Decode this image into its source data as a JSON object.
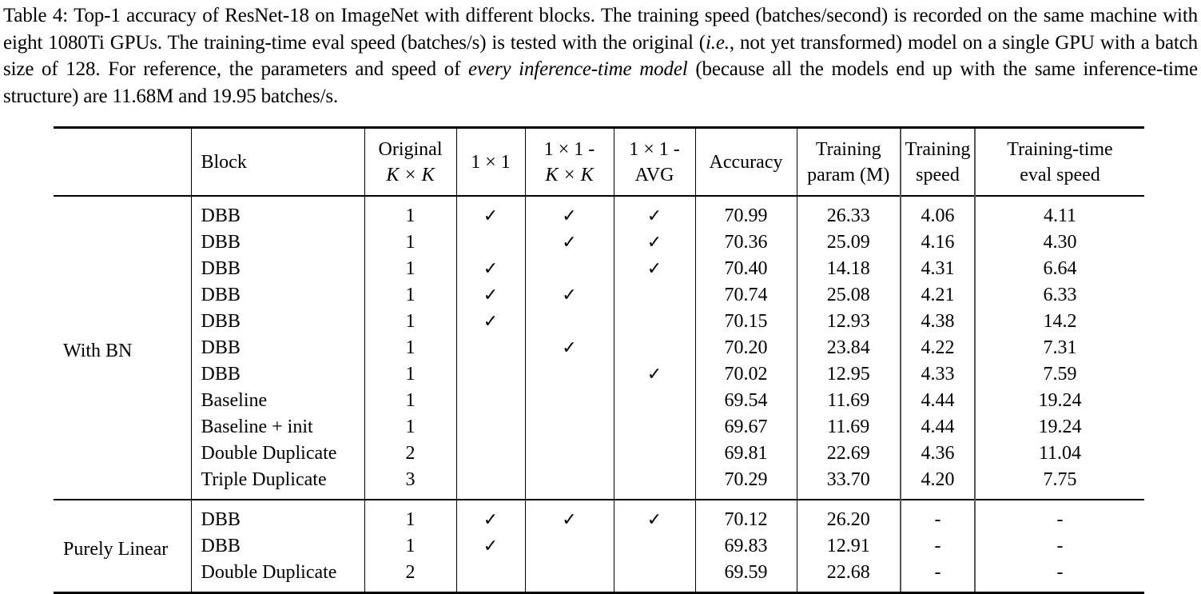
{
  "caption": {
    "label": "Table 4:",
    "part1": " Top-1 accuracy of ResNet-18 on ImageNet with different blocks. The training speed (batches/second) is recorded on the same machine with eight 1080Ti GPUs. The training-time eval speed (batches/s) is tested with the original (",
    "ie": "i.e.",
    "part2": ", not yet transformed) model on a single GPU with a batch size of 128. For reference, the parameters and speed of ",
    "italic": "every inference-time model",
    "part3": " (because all the models end up with the same inference-time structure) are 11.68M and 19.95 batches/s."
  },
  "table": {
    "headers": {
      "group": "",
      "block": "Block",
      "original_l1": "Original",
      "original_l2": "K × K",
      "one_by_one": "1 × 1",
      "one_kk_l1": "1 × 1 -",
      "one_kk_l2": "K × K",
      "one_avg_l1": "1 × 1 -",
      "one_avg_l2": "AVG",
      "accuracy": "Accuracy",
      "param_l1": "Training",
      "param_l2": "param (M)",
      "speed_l1": "Training",
      "speed_l2": "speed",
      "eval_l1": "Training-time",
      "eval_l2": "eval speed"
    },
    "check_symbol": "✓",
    "groups": [
      {
        "name": "With BN",
        "rows": [
          {
            "block": "DBB",
            "orig": "1",
            "c1": "✓",
            "c2": "✓",
            "c3": "✓",
            "acc": "70.99",
            "param": "26.33",
            "speed": "4.06",
            "eval": "4.11"
          },
          {
            "block": "DBB",
            "orig": "1",
            "c1": "",
            "c2": "✓",
            "c3": "✓",
            "acc": "70.36",
            "param": "25.09",
            "speed": "4.16",
            "eval": "4.30"
          },
          {
            "block": "DBB",
            "orig": "1",
            "c1": "✓",
            "c2": "",
            "c3": "✓",
            "acc": "70.40",
            "param": "14.18",
            "speed": "4.31",
            "eval": "6.64"
          },
          {
            "block": "DBB",
            "orig": "1",
            "c1": "✓",
            "c2": "✓",
            "c3": "",
            "acc": "70.74",
            "param": "25.08",
            "speed": "4.21",
            "eval": "6.33"
          },
          {
            "block": "DBB",
            "orig": "1",
            "c1": "✓",
            "c2": "",
            "c3": "",
            "acc": "70.15",
            "param": "12.93",
            "speed": "4.38",
            "eval": "14.2"
          },
          {
            "block": "DBB",
            "orig": "1",
            "c1": "",
            "c2": "✓",
            "c3": "",
            "acc": "70.20",
            "param": "23.84",
            "speed": "4.22",
            "eval": "7.31"
          },
          {
            "block": "DBB",
            "orig": "1",
            "c1": "",
            "c2": "",
            "c3": "✓",
            "acc": "70.02",
            "param": "12.95",
            "speed": "4.33",
            "eval": "7.59"
          },
          {
            "block": "Baseline",
            "orig": "1",
            "c1": "",
            "c2": "",
            "c3": "",
            "acc": "69.54",
            "param": "11.69",
            "speed": "4.44",
            "eval": "19.24"
          },
          {
            "block": "Baseline + init",
            "orig": "1",
            "c1": "",
            "c2": "",
            "c3": "",
            "acc": "69.67",
            "param": "11.69",
            "speed": "4.44",
            "eval": "19.24"
          },
          {
            "block": "Double Duplicate",
            "orig": "2",
            "c1": "",
            "c2": "",
            "c3": "",
            "acc": "69.81",
            "param": "22.69",
            "speed": "4.36",
            "eval": "11.04"
          },
          {
            "block": "Triple Duplicate",
            "orig": "3",
            "c1": "",
            "c2": "",
            "c3": "",
            "acc": "70.29",
            "param": "33.70",
            "speed": "4.20",
            "eval": "7.75"
          }
        ]
      },
      {
        "name": "Purely Linear",
        "rows": [
          {
            "block": "DBB",
            "orig": "1",
            "c1": "✓",
            "c2": "✓",
            "c3": "✓",
            "acc": "70.12",
            "param": "26.20",
            "speed": "-",
            "eval": "-"
          },
          {
            "block": "DBB",
            "orig": "1",
            "c1": "✓",
            "c2": "",
            "c3": "",
            "acc": "69.83",
            "param": "12.91",
            "speed": "-",
            "eval": "-"
          },
          {
            "block": "Double Duplicate",
            "orig": "2",
            "c1": "",
            "c2": "",
            "c3": "",
            "acc": "69.59",
            "param": "22.68",
            "speed": "-",
            "eval": "-"
          }
        ]
      }
    ]
  }
}
